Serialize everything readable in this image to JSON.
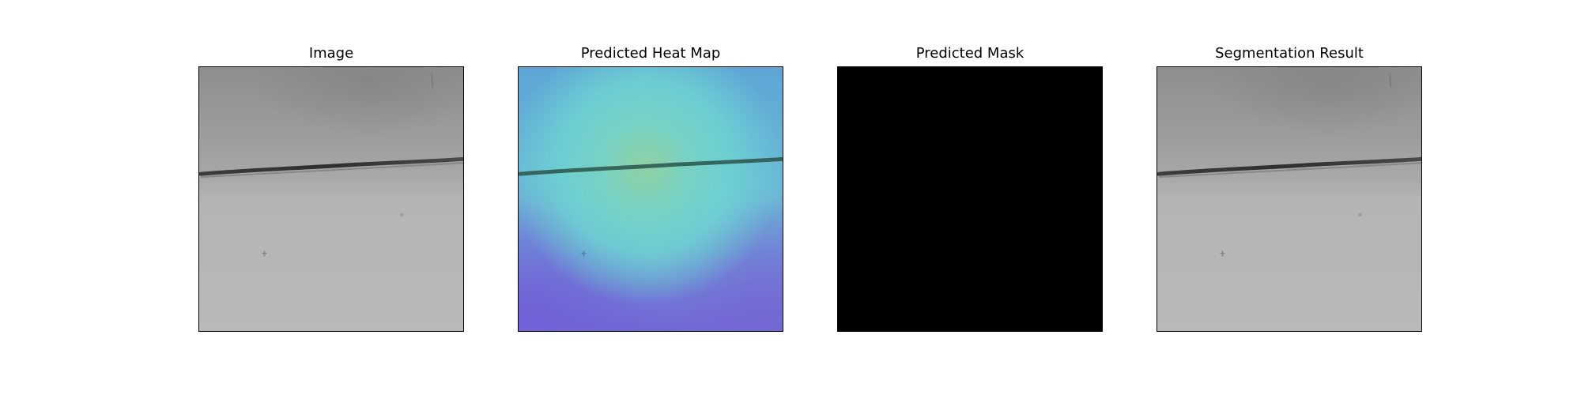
{
  "figure": {
    "panels": [
      {
        "title": "Image",
        "content": "grayscale-surface"
      },
      {
        "title": "Predicted Heat Map",
        "content": "heatmap-overlay"
      },
      {
        "title": "Predicted Mask",
        "content": "black-mask"
      },
      {
        "title": "Segmentation Result",
        "content": "grayscale-surface"
      }
    ]
  },
  "colors": {
    "surface_light": "#b8b8b8",
    "surface_dark": "#8c8c8c",
    "scratch": "#3a3a3a",
    "heat_cyan": "#6ed3d2",
    "heat_green": "#86cfa8",
    "heat_blue": "#6f7fd8",
    "heat_violet": "#7363d6",
    "mask": "#000000"
  }
}
